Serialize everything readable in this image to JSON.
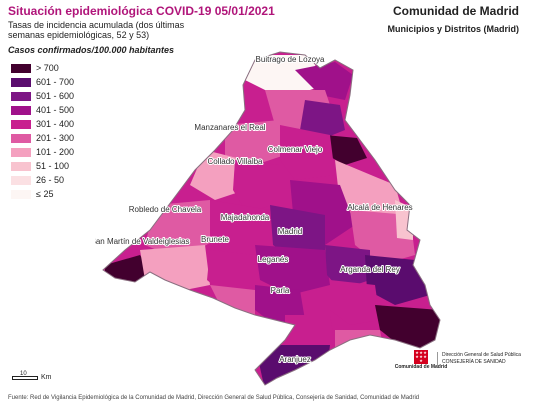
{
  "header": {
    "title": "Situación epidemiológica COVID-19  05/01/2021",
    "region": "Comunidad de Madrid",
    "subtitle": "Tasas de incidencia acumulada (dos últimas semanas epidemiológicas, 52 y 53)",
    "units": "Casos confirmados/100.000 habitantes",
    "scope": "Municipios y Distritos (Madrid)"
  },
  "legend": [
    {
      "label": "> 700",
      "color": "#42002e"
    },
    {
      "label": "601 - 700",
      "color": "#5a0c6e"
    },
    {
      "label": "501 - 600",
      "color": "#7d1585"
    },
    {
      "label": "401 - 500",
      "color": "#a0118a"
    },
    {
      "label": "301 - 400",
      "color": "#c81f8f"
    },
    {
      "label": "201 - 300",
      "color": "#df5aa3"
    },
    {
      "label": "101 - 200",
      "color": "#f4a0bf"
    },
    {
      "label": "51 - 100",
      "color": "#f8c3cf"
    },
    {
      "label": "26 - 50",
      "color": "#fbe0e3"
    },
    {
      "label": "≤ 25",
      "color": "#fdf6f4"
    }
  ],
  "map": {
    "labels": [
      "Buitrago de Lozoya",
      "Manzanares el Real",
      "Colmenar Viejo",
      "Collado Villalba",
      "Robledo de Chavela",
      "Majadahonda",
      "Alcalá de Henares",
      "San Martín de Valdeiglesias",
      "Brunete",
      "Madrid",
      "Leganés",
      "Arganda del Rey",
      "Parla",
      "Aranjuez"
    ]
  },
  "scale": {
    "value": "10",
    "unit": "Km"
  },
  "logo": {
    "name": "Comunidad de Madrid",
    "line1": "Dirección General de Salud Pública",
    "line2": "CONSEJERÍA DE SANIDAD"
  },
  "footer": "Fuente: Red de Vigilancia Epidemiológica de la Comunidad de Madrid, Dirección General de Salud Pública, Consejería de Sanidad, Comunidad de Madrid"
}
